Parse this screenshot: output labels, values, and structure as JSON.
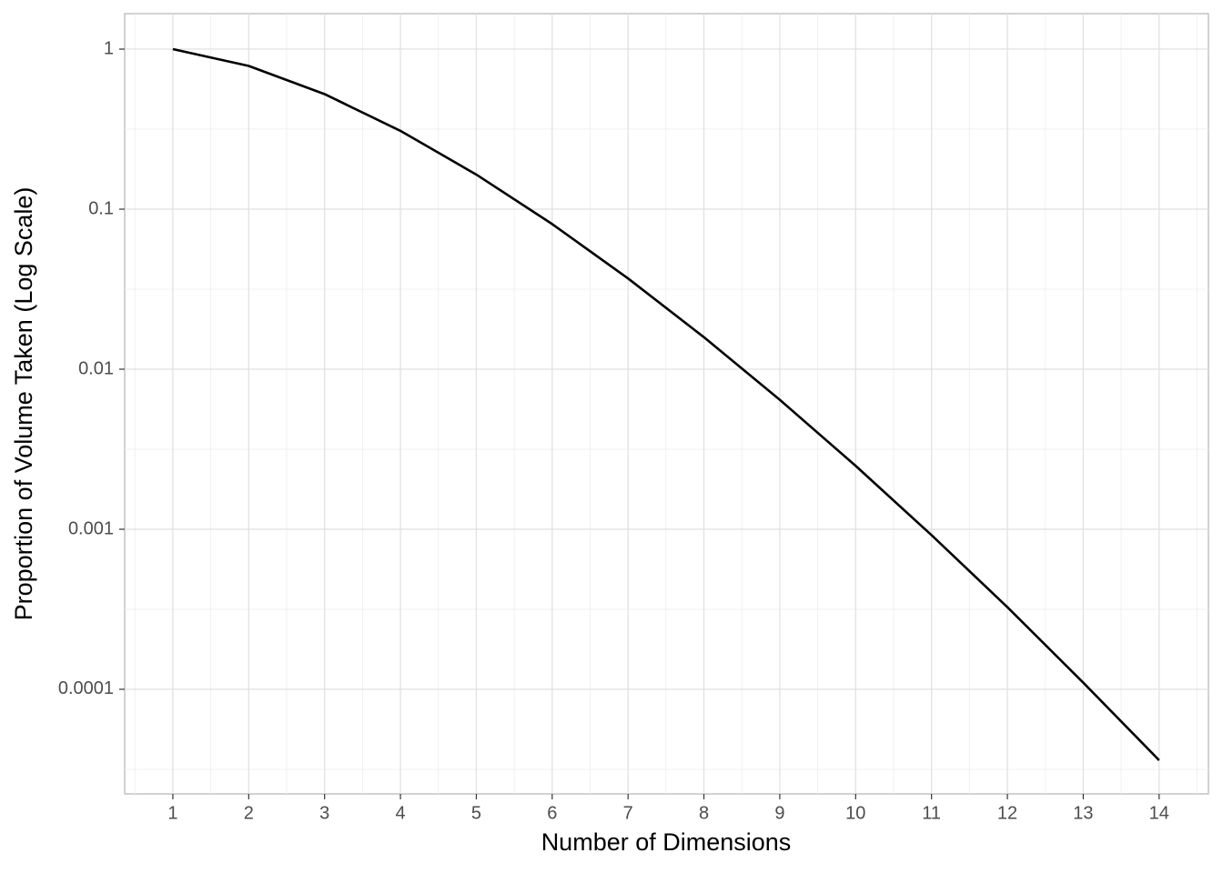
{
  "chart_data": {
    "type": "line",
    "x_label": "Number of Dimensions",
    "y_label": "Proportion of Volume Taken (Log Scale)",
    "x": [
      1,
      2,
      3,
      4,
      5,
      6,
      7,
      8,
      9,
      10,
      11,
      12,
      13,
      14
    ],
    "series": [
      {
        "color": "#000000",
        "values": [
          1,
          0.7854,
          0.5236,
          0.3084,
          0.1645,
          0.0807,
          0.0369,
          0.01585,
          0.00644,
          0.00249,
          0.000919,
          0.000326,
          0.00011,
          3.6e-05
        ]
      }
    ],
    "xlim": [
      0.365,
      14.65
    ],
    "xticks": [
      1,
      2,
      3,
      4,
      5,
      6,
      7,
      8,
      9,
      10,
      11,
      12,
      13,
      14
    ],
    "ylim": [
      2.22e-05,
      1.666
    ],
    "yticks": [
      1,
      0.1,
      0.01,
      0.001,
      0.0001
    ],
    "y_log": true,
    "grid": true
  }
}
